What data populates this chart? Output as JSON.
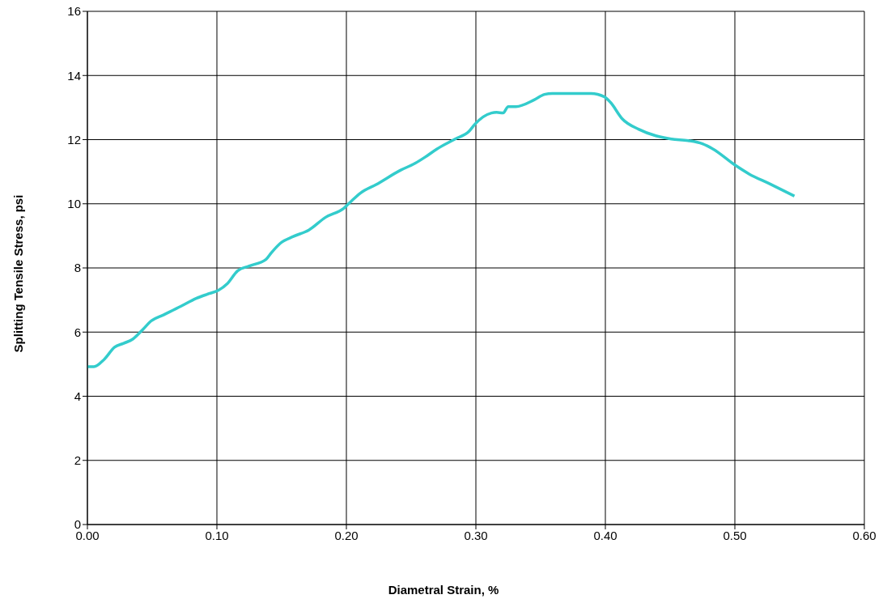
{
  "chart_data": {
    "type": "line",
    "xlabel": "Diametral Strain, %",
    "ylabel": "Splitting Tensile Stress, psi",
    "xlim": [
      0,
      0.6
    ],
    "xticks": [
      {
        "value": 0,
        "label": "0.00"
      },
      {
        "value": 0.1,
        "label": "0.10"
      },
      {
        "value": 0.2,
        "label": "0.20"
      },
      {
        "value": 0.3,
        "label": "0.30"
      },
      {
        "value": 0.4,
        "label": "0.40"
      },
      {
        "value": 0.5,
        "label": "0.50"
      },
      {
        "value": 0.6,
        "label": "0.60"
      }
    ],
    "ylim": [
      0,
      16
    ],
    "yticks": [
      0,
      2,
      4,
      6,
      8,
      10,
      12,
      14,
      16
    ],
    "grid": true,
    "marker": "none",
    "line_style": "solid",
    "series": [
      {
        "color": "#33cccc",
        "x": [
          0,
          0.005,
          0.013,
          0.021,
          0.028,
          0.035,
          0.043,
          0.049,
          0.059,
          0.072,
          0.084,
          0.094,
          0.101,
          0.108,
          0.116,
          0.125,
          0.138,
          0.142,
          0.149,
          0.159,
          0.171,
          0.184,
          0.198,
          0.204,
          0.211,
          0.223,
          0.242,
          0.253,
          0.261,
          0.27,
          0.284,
          0.295,
          0.299,
          0.312,
          0.316,
          0.321,
          0.325,
          0.331,
          0.345,
          0.353,
          0.359,
          0.382,
          0.389,
          0.399,
          0.404,
          0.413,
          0.426,
          0.439,
          0.451,
          0.464,
          0.475,
          0.483,
          0.5,
          0.511,
          0.527,
          0.546
        ],
        "values": [
          4.92,
          4.92,
          5.15,
          5.53,
          5.65,
          5.78,
          6.09,
          6.34,
          6.54,
          6.8,
          7.05,
          7.2,
          7.3,
          7.51,
          7.91,
          8.06,
          8.27,
          8.47,
          8.77,
          8.98,
          9.18,
          9.58,
          9.86,
          10.09,
          10.34,
          10.6,
          11.05,
          11.26,
          11.46,
          11.71,
          12.02,
          12.27,
          12.47,
          12.83,
          12.85,
          12.83,
          13.03,
          13.03,
          13.24,
          13.41,
          13.44,
          13.44,
          13.44,
          13.34,
          13.16,
          12.65,
          12.32,
          12.12,
          12.02,
          11.97,
          11.87,
          11.71,
          11.21,
          10.93,
          10.62,
          10.24
        ]
      }
    ]
  }
}
